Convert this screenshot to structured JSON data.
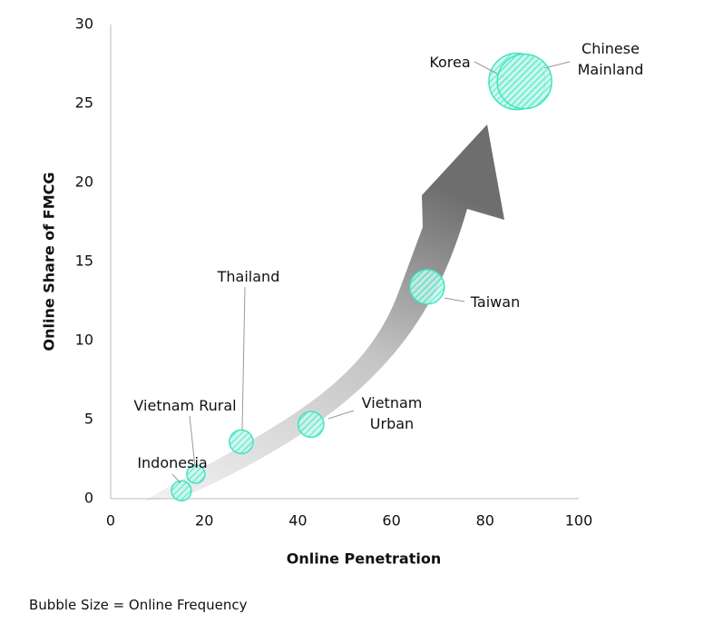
{
  "chart_data": {
    "type": "bubble",
    "xlabel": "Online Penetration",
    "ylabel": "Online Share of FMCG",
    "note": "Bubble Size = Online Frequency",
    "xlim": [
      0,
      100
    ],
    "xticks": [
      0,
      20,
      40,
      60,
      80,
      100
    ],
    "ylim": [
      0,
      30
    ],
    "yticks": [
      0,
      5,
      10,
      15,
      20,
      25,
      30
    ],
    "color": "#3ee6c1",
    "points": [
      {
        "name": "Indonesia",
        "x": 15.1,
        "y": 0.5,
        "size": 1.2
      },
      {
        "name": "Vietnam Rural",
        "x": 18.2,
        "y": 1.55,
        "size": 1.0
      },
      {
        "name": "Thailand",
        "x": 27.9,
        "y": 3.6,
        "size": 1.7
      },
      {
        "name": "Vietnam\nUrban",
        "x": 42.8,
        "y": 4.7,
        "size": 2.0
      },
      {
        "name": "Taiwan",
        "x": 67.6,
        "y": 13.4,
        "size": 3.6
      },
      {
        "name": "Korea",
        "x": 86.8,
        "y": 26.4,
        "size": 9.6
      },
      {
        "name": "Chinese\nMainland",
        "x": 88.4,
        "y": 26.4,
        "size": 9.0
      }
    ]
  }
}
